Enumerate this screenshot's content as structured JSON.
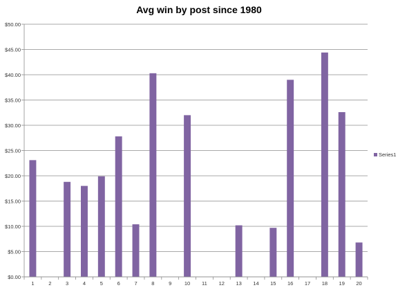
{
  "chart_data": {
    "type": "bar",
    "title": "Avg win by post since 1980",
    "xlabel": "",
    "ylabel": "",
    "categories": [
      "1",
      "2",
      "3",
      "4",
      "5",
      "6",
      "7",
      "8",
      "9",
      "10",
      "11",
      "12",
      "13",
      "14",
      "15",
      "16",
      "17",
      "18",
      "19",
      "20"
    ],
    "series": [
      {
        "name": "Series1",
        "values": [
          23.1,
          0,
          18.8,
          18.0,
          19.9,
          27.8,
          10.4,
          40.3,
          0,
          32.0,
          0,
          0,
          10.2,
          0,
          9.7,
          39.0,
          0,
          44.4,
          32.6,
          6.8
        ]
      }
    ],
    "ylim": [
      0,
      50
    ],
    "yticks": [
      "$0.00",
      "$5.00",
      "$10.00",
      "$15.00",
      "$20.00",
      "$25.00",
      "$30.00",
      "$35.00",
      "$40.00",
      "$45.00",
      "$50.00"
    ],
    "grid": true,
    "legend_position": "right",
    "bar_color": "#8064a2"
  }
}
